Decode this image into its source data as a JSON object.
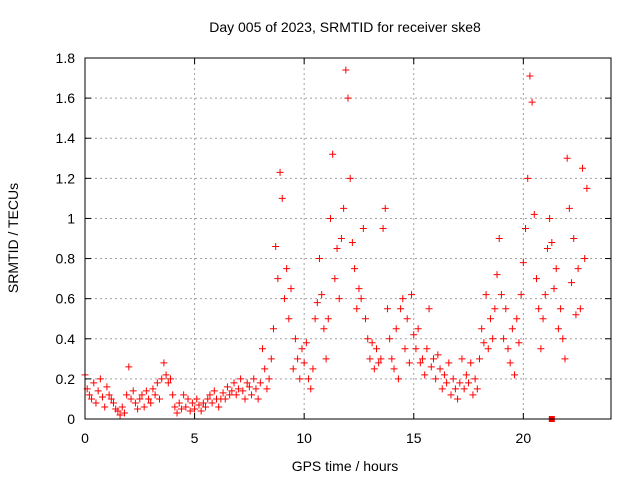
{
  "chart_data": {
    "type": "scatter",
    "title": "Day 005 of 2023, SRMTID for receiver ske8",
    "xlabel": "GPS time / hours",
    "ylabel": "SRMTID / TECUs",
    "xlim": [
      0,
      24
    ],
    "ylim": [
      0,
      1.8
    ],
    "xticks": [
      0,
      5,
      10,
      15,
      20
    ],
    "xtick_labels": [
      "0",
      "5",
      "10",
      "15",
      "20"
    ],
    "yticks": [
      0,
      0.2,
      0.4,
      0.6,
      0.8,
      1.0,
      1.2,
      1.4,
      1.6,
      1.8
    ],
    "ytick_labels": [
      "0",
      "0.2",
      "0.4",
      "0.6",
      "0.8",
      "1",
      "1.2",
      "1.4",
      "1.6",
      "1.8"
    ],
    "grid": true,
    "marker": "+",
    "color": "#ff0000",
    "series": [
      {
        "name": "SRMTID",
        "points": [
          [
            0.0,
            0.22
          ],
          [
            0.1,
            0.15
          ],
          [
            0.2,
            0.12
          ],
          [
            0.3,
            0.1
          ],
          [
            0.4,
            0.18
          ],
          [
            0.5,
            0.08
          ],
          [
            0.6,
            0.14
          ],
          [
            0.7,
            0.2
          ],
          [
            0.8,
            0.11
          ],
          [
            0.9,
            0.06
          ],
          [
            1.0,
            0.16
          ],
          [
            1.1,
            0.12
          ],
          [
            1.2,
            0.1
          ],
          [
            1.3,
            0.08
          ],
          [
            1.4,
            0.05
          ],
          [
            1.5,
            0.04
          ],
          [
            1.6,
            0.02
          ],
          [
            1.7,
            0.06
          ],
          [
            1.8,
            0.03
          ],
          [
            1.9,
            0.12
          ],
          [
            2.0,
            0.26
          ],
          [
            2.1,
            0.1
          ],
          [
            2.2,
            0.14
          ],
          [
            2.3,
            0.08
          ],
          [
            2.4,
            0.05
          ],
          [
            2.5,
            0.1
          ],
          [
            2.6,
            0.12
          ],
          [
            2.7,
            0.06
          ],
          [
            2.8,
            0.14
          ],
          [
            2.9,
            0.1
          ],
          [
            3.0,
            0.08
          ],
          [
            3.1,
            0.15
          ],
          [
            3.2,
            0.12
          ],
          [
            3.3,
            0.18
          ],
          [
            3.4,
            0.1
          ],
          [
            3.5,
            0.2
          ],
          [
            3.6,
            0.28
          ],
          [
            3.7,
            0.22
          ],
          [
            3.8,
            0.18
          ],
          [
            3.9,
            0.2
          ],
          [
            4.0,
            0.12
          ],
          [
            4.1,
            0.06
          ],
          [
            4.2,
            0.03
          ],
          [
            4.3,
            0.08
          ],
          [
            4.4,
            0.05
          ],
          [
            4.5,
            0.12
          ],
          [
            4.6,
            0.06
          ],
          [
            4.7,
            0.1
          ],
          [
            4.8,
            0.04
          ],
          [
            4.9,
            0.08
          ],
          [
            5.0,
            0.05
          ],
          [
            5.1,
            0.1
          ],
          [
            5.2,
            0.07
          ],
          [
            5.3,
            0.04
          ],
          [
            5.4,
            0.08
          ],
          [
            5.5,
            0.06
          ],
          [
            5.6,
            0.1
          ],
          [
            5.7,
            0.12
          ],
          [
            5.8,
            0.08
          ],
          [
            5.9,
            0.14
          ],
          [
            6.0,
            0.1
          ],
          [
            6.1,
            0.06
          ],
          [
            6.2,
            0.1
          ],
          [
            6.3,
            0.13
          ],
          [
            6.4,
            0.1
          ],
          [
            6.5,
            0.16
          ],
          [
            6.6,
            0.12
          ],
          [
            6.7,
            0.14
          ],
          [
            6.8,
            0.18
          ],
          [
            6.9,
            0.12
          ],
          [
            7.0,
            0.15
          ],
          [
            7.1,
            0.2
          ],
          [
            7.2,
            0.14
          ],
          [
            7.3,
            0.1
          ],
          [
            7.4,
            0.18
          ],
          [
            7.5,
            0.16
          ],
          [
            7.6,
            0.12
          ],
          [
            7.7,
            0.2
          ],
          [
            7.8,
            0.15
          ],
          [
            7.9,
            0.1
          ],
          [
            8.0,
            0.18
          ],
          [
            8.1,
            0.35
          ],
          [
            8.2,
            0.25
          ],
          [
            8.3,
            0.15
          ],
          [
            8.4,
            0.2
          ],
          [
            8.5,
            0.3
          ],
          [
            8.6,
            0.45
          ],
          [
            8.7,
            0.86
          ],
          [
            8.8,
            0.7
          ],
          [
            8.9,
            1.23
          ],
          [
            9.0,
            1.1
          ],
          [
            9.1,
            0.6
          ],
          [
            9.2,
            0.75
          ],
          [
            9.3,
            0.5
          ],
          [
            9.4,
            0.65
          ],
          [
            9.5,
            0.25
          ],
          [
            9.6,
            0.4
          ],
          [
            9.7,
            0.3
          ],
          [
            9.8,
            0.2
          ],
          [
            9.9,
            0.35
          ],
          [
            10.0,
            0.28
          ],
          [
            10.1,
            0.38
          ],
          [
            10.2,
            0.2
          ],
          [
            10.3,
            0.15
          ],
          [
            10.4,
            0.25
          ],
          [
            10.5,
            0.5
          ],
          [
            10.6,
            0.58
          ],
          [
            10.7,
            0.8
          ],
          [
            10.8,
            0.62
          ],
          [
            10.9,
            0.45
          ],
          [
            11.0,
            0.3
          ],
          [
            11.1,
            0.5
          ],
          [
            11.2,
            1.0
          ],
          [
            11.3,
            1.32
          ],
          [
            11.4,
            0.7
          ],
          [
            11.5,
            0.85
          ],
          [
            11.6,
            0.6
          ],
          [
            11.7,
            0.9
          ],
          [
            11.8,
            1.05
          ],
          [
            11.9,
            1.74
          ],
          [
            12.0,
            1.6
          ],
          [
            12.1,
            1.2
          ],
          [
            12.2,
            0.88
          ],
          [
            12.3,
            0.75
          ],
          [
            12.4,
            0.55
          ],
          [
            12.5,
            0.65
          ],
          [
            12.6,
            0.6
          ],
          [
            12.7,
            0.95
          ],
          [
            12.8,
            0.5
          ],
          [
            12.9,
            0.4
          ],
          [
            13.0,
            0.3
          ],
          [
            13.1,
            0.38
          ],
          [
            13.2,
            0.25
          ],
          [
            13.3,
            0.35
          ],
          [
            13.4,
            0.28
          ],
          [
            13.5,
            0.3
          ],
          [
            13.6,
            0.95
          ],
          [
            13.7,
            1.05
          ],
          [
            13.8,
            0.55
          ],
          [
            13.9,
            0.4
          ],
          [
            14.0,
            0.3
          ],
          [
            14.1,
            0.25
          ],
          [
            14.2,
            0.45
          ],
          [
            14.3,
            0.2
          ],
          [
            14.4,
            0.55
          ],
          [
            14.5,
            0.6
          ],
          [
            14.6,
            0.35
          ],
          [
            14.7,
            0.5
          ],
          [
            14.8,
            0.28
          ],
          [
            14.9,
            0.62
          ],
          [
            15.0,
            0.42
          ],
          [
            15.1,
            0.35
          ],
          [
            15.2,
            0.45
          ],
          [
            15.3,
            0.28
          ],
          [
            15.4,
            0.3
          ],
          [
            15.5,
            0.22
          ],
          [
            15.6,
            0.35
          ],
          [
            15.7,
            0.55
          ],
          [
            15.8,
            0.26
          ],
          [
            15.9,
            0.3
          ],
          [
            16.0,
            0.2
          ],
          [
            16.1,
            0.32
          ],
          [
            16.2,
            0.25
          ],
          [
            16.3,
            0.15
          ],
          [
            16.4,
            0.22
          ],
          [
            16.5,
            0.18
          ],
          [
            16.6,
            0.28
          ],
          [
            16.7,
            0.12
          ],
          [
            16.8,
            0.2
          ],
          [
            16.9,
            0.15
          ],
          [
            17.0,
            0.1
          ],
          [
            17.1,
            0.18
          ],
          [
            17.2,
            0.3
          ],
          [
            17.3,
            0.15
          ],
          [
            17.4,
            0.22
          ],
          [
            17.5,
            0.18
          ],
          [
            17.6,
            0.28
          ],
          [
            17.7,
            0.12
          ],
          [
            17.8,
            0.2
          ],
          [
            17.9,
            0.15
          ],
          [
            18.0,
            0.3
          ],
          [
            18.1,
            0.45
          ],
          [
            18.2,
            0.38
          ],
          [
            18.3,
            0.62
          ],
          [
            18.4,
            0.35
          ],
          [
            18.5,
            0.5
          ],
          [
            18.6,
            0.4
          ],
          [
            18.7,
            0.55
          ],
          [
            18.8,
            0.72
          ],
          [
            18.9,
            0.9
          ],
          [
            19.0,
            0.62
          ],
          [
            19.1,
            0.4
          ],
          [
            19.2,
            0.55
          ],
          [
            19.3,
            0.35
          ],
          [
            19.4,
            0.28
          ],
          [
            19.5,
            0.45
          ],
          [
            19.6,
            0.22
          ],
          [
            19.7,
            0.5
          ],
          [
            19.8,
            0.38
          ],
          [
            19.9,
            0.62
          ],
          [
            20.0,
            0.78
          ],
          [
            20.1,
            0.95
          ],
          [
            20.2,
            1.2
          ],
          [
            20.3,
            1.71
          ],
          [
            20.4,
            1.58
          ],
          [
            20.5,
            1.02
          ],
          [
            20.6,
            0.7
          ],
          [
            20.7,
            0.55
          ],
          [
            20.8,
            0.35
          ],
          [
            20.9,
            0.5
          ],
          [
            21.0,
            0.62
          ],
          [
            21.1,
            0.85
          ],
          [
            21.2,
            1.0
          ],
          [
            21.3,
            0.88
          ],
          [
            21.4,
            0.65
          ],
          [
            21.5,
            0.75
          ],
          [
            21.6,
            0.45
          ],
          [
            21.7,
            0.55
          ],
          [
            21.8,
            0.4
          ],
          [
            21.9,
            0.3
          ],
          [
            22.0,
            1.3
          ],
          [
            22.1,
            1.05
          ],
          [
            22.2,
            0.68
          ],
          [
            22.3,
            0.9
          ],
          [
            22.4,
            0.52
          ],
          [
            22.5,
            0.75
          ],
          [
            22.6,
            0.55
          ],
          [
            22.7,
            1.25
          ],
          [
            22.8,
            0.8
          ],
          [
            22.9,
            1.15
          ]
        ]
      }
    ],
    "annotations": [
      {
        "type": "square",
        "x": 21.3,
        "y": 0.0
      }
    ]
  }
}
